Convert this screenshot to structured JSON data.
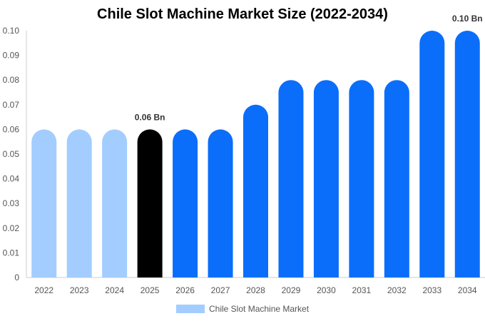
{
  "chart_data": {
    "type": "bar",
    "title": "Chile Slot Machine Market Size (2022-2034)",
    "categories": [
      "2022",
      "2023",
      "2024",
      "2025",
      "2026",
      "2027",
      "2028",
      "2029",
      "2030",
      "2031",
      "2032",
      "2033",
      "2034"
    ],
    "series": [
      {
        "name": "Chile Slot Machine Market",
        "values": [
          0.06,
          0.06,
          0.06,
          0.06,
          0.06,
          0.06,
          0.07,
          0.08,
          0.08,
          0.08,
          0.08,
          0.1,
          0.1
        ]
      }
    ],
    "ylim": [
      0,
      0.1
    ],
    "yticks": [
      "0",
      "0.01",
      "0.02",
      "0.03",
      "0.04",
      "0.05",
      "0.06",
      "0.07",
      "0.08",
      "0.09",
      "0.10"
    ],
    "data_labels": [
      {
        "index": 3,
        "text": "0.06 Bn"
      },
      {
        "index": 12,
        "text": "0.10 Bn"
      }
    ],
    "colors": {
      "history": "#a3cdff",
      "base_year": "#000000",
      "forecast": "#0a6efa"
    },
    "bar_color_groups": [
      "history",
      "history",
      "history",
      "base_year",
      "forecast",
      "forecast",
      "forecast",
      "forecast",
      "forecast",
      "forecast",
      "forecast",
      "forecast",
      "forecast"
    ],
    "legend": {
      "position": "bottom",
      "label": "Chile Slot Machine Market",
      "color": "#a3cdff"
    },
    "grid": false
  }
}
